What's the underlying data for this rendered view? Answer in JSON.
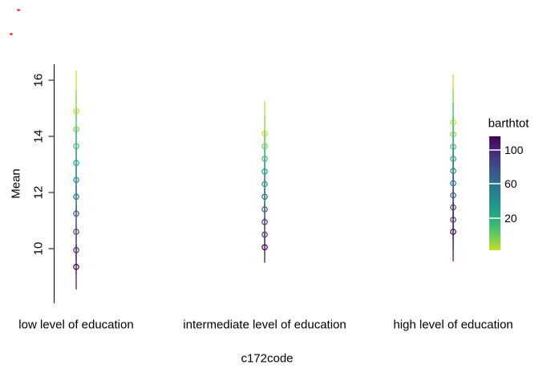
{
  "decorations": {
    "speck_color": "#e04f4f"
  },
  "chart_data": {
    "type": "scatter",
    "title": "",
    "xlabel": "c172code",
    "ylabel": "Mean",
    "background": "#ffffff",
    "grid": false,
    "x_categories": [
      "low level of education",
      "intermediate level of education",
      "high level of education"
    ],
    "y_ticks": [
      10,
      12,
      14,
      16
    ],
    "ylim": [
      8.3,
      16.6
    ],
    "point_colors_top_to_bottom": [
      "#BDDF26",
      "#7AD151",
      "#44BF70",
      "#22A884",
      "#21918C",
      "#2A788E",
      "#355F8D",
      "#414487",
      "#46327E",
      "#440154"
    ],
    "legend": {
      "title": "barthtot",
      "position": "right",
      "ticks": [
        100,
        60,
        20
      ],
      "gradient_top_to_bottom": [
        "#440154",
        "#472D7B",
        "#3B528B",
        "#2C728E",
        "#21918C",
        "#27AD81",
        "#5EC962",
        "#C2DF23"
      ]
    },
    "groups": [
      {
        "category": "low level of education",
        "line_range": [
          8.55,
          16.35
        ],
        "means": [
          14.9,
          14.25,
          13.65,
          13.05,
          12.45,
          11.85,
          11.25,
          10.6,
          9.95,
          9.35
        ]
      },
      {
        "category": "intermediate level of education",
        "line_range": [
          9.5,
          15.25
        ],
        "means": [
          14.1,
          13.65,
          13.2,
          12.75,
          12.3,
          11.85,
          11.4,
          10.95,
          10.5,
          10.05
        ]
      },
      {
        "category": "high level of education",
        "line_range": [
          9.55,
          16.2
        ],
        "means": [
          14.5,
          14.07,
          13.63,
          13.2,
          12.77,
          12.33,
          11.9,
          11.47,
          11.03,
          10.6
        ]
      }
    ]
  }
}
